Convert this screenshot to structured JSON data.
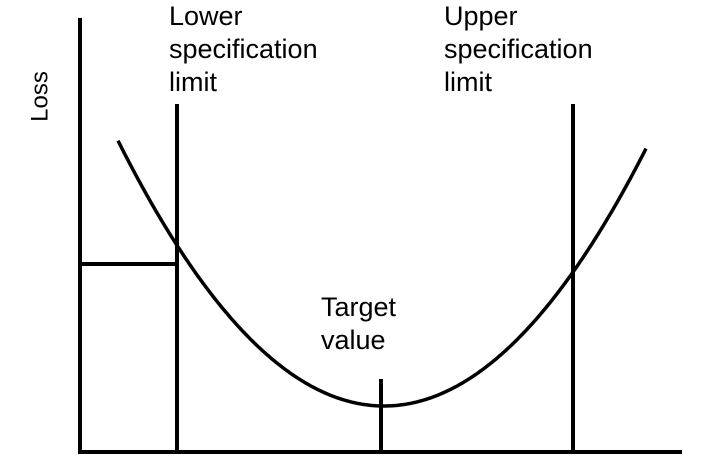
{
  "diagram": {
    "y_axis_label": "Loss",
    "lower_limit_label": [
      "Lower",
      "specification",
      "limit"
    ],
    "upper_limit_label": [
      "Upper",
      "specification",
      "limit"
    ],
    "target_label": [
      "Target",
      "value"
    ],
    "colors": {
      "line": "#000000",
      "background": "#ffffff"
    },
    "curve": "quadratic-loss"
  }
}
